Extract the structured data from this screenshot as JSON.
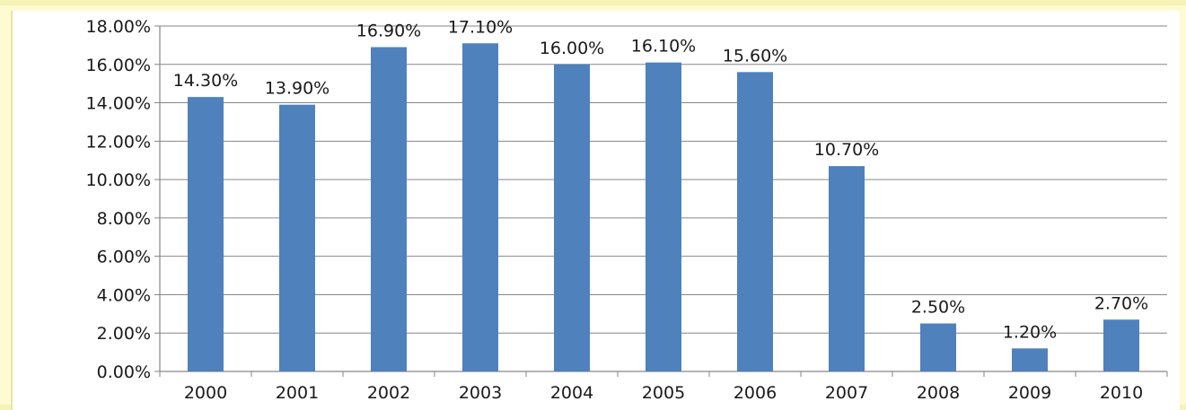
{
  "chart_data": {
    "type": "bar",
    "title": "",
    "xlabel": "",
    "ylabel": "",
    "categories": [
      "2000",
      "2001",
      "2002",
      "2003",
      "2004",
      "2005",
      "2006",
      "2007",
      "2008",
      "2009",
      "2010"
    ],
    "series": [
      {
        "values": [
          14.3,
          13.9,
          16.9,
          17.1,
          16.0,
          16.1,
          15.6,
          10.7,
          2.5,
          1.2,
          2.7
        ],
        "data_labels": [
          "14.30%",
          "13.90%",
          "16.90%",
          "17.10%",
          "16.00%",
          "16.10%",
          "15.60%",
          "10.70%",
          "2.50%",
          "1.20%",
          "2.70%"
        ]
      }
    ],
    "ylim": [
      0,
      18
    ],
    "y_ticks": [
      0,
      2,
      4,
      6,
      8,
      10,
      12,
      14,
      16,
      18
    ],
    "y_tick_labels": [
      "0.00%",
      "2.00%",
      "4.00%",
      "6.00%",
      "8.00%",
      "10.00%",
      "12.00%",
      "14.00%",
      "16.00%",
      "18.00%"
    ],
    "grid": true,
    "legend": "none",
    "colors": {
      "bar": "#4f81bd",
      "grid": "#868686",
      "background": "#fefbd2"
    }
  }
}
